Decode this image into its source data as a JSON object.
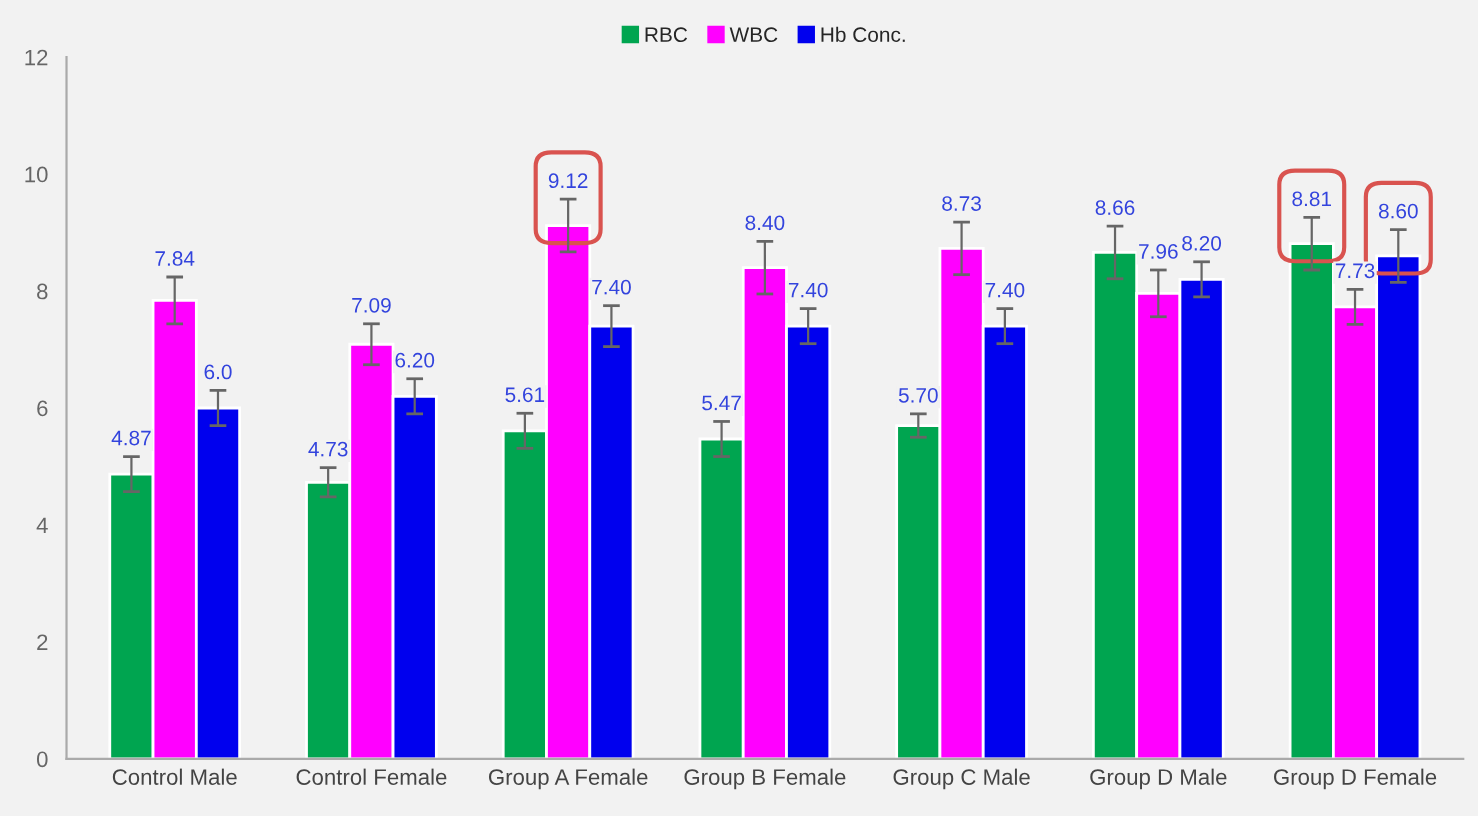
{
  "chart_data": {
    "type": "bar",
    "categories": [
      "Control Male",
      "Control Female",
      "Group A Female",
      "Group B Female",
      "Group C Male",
      "Group D Male",
      "Group D Female"
    ],
    "series": [
      {
        "name": "RBC",
        "color": "#00a550",
        "values": [
          4.87,
          4.73,
          5.61,
          5.47,
          5.7,
          8.66,
          8.81
        ],
        "value_labels": [
          "4.87",
          "4.73",
          "5.61",
          "5.47",
          "5.70",
          "8.66",
          "8.81"
        ],
        "errors": [
          0.3,
          0.25,
          0.3,
          0.3,
          0.2,
          0.45,
          0.45
        ]
      },
      {
        "name": "WBC",
        "color": "#ff00ff",
        "values": [
          7.84,
          7.09,
          9.12,
          8.4,
          8.73,
          7.96,
          7.73
        ],
        "value_labels": [
          "7.84",
          "7.09",
          "9.12",
          "8.40",
          "8.73",
          "7.96",
          "7.73"
        ],
        "errors": [
          0.4,
          0.35,
          0.45,
          0.45,
          0.45,
          0.4,
          0.3
        ]
      },
      {
        "name": "Hb Conc.",
        "color": "#0000ee",
        "values": [
          6.0,
          6.2,
          7.4,
          7.4,
          7.4,
          8.2,
          8.6
        ],
        "value_labels": [
          "6.0",
          "6.20",
          "7.40",
          "7.40",
          "7.40",
          "8.20",
          "8.60"
        ],
        "errors": [
          0.3,
          0.3,
          0.35,
          0.3,
          0.3,
          0.3,
          0.45
        ]
      }
    ],
    "ylim": [
      0,
      12
    ],
    "yticks": [
      0,
      2,
      4,
      6,
      8,
      10,
      12
    ],
    "grid": false,
    "legend": "top"
  }
}
